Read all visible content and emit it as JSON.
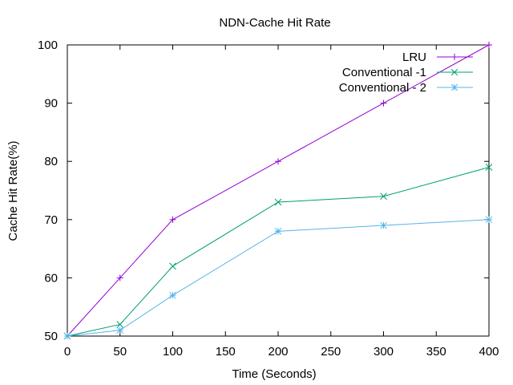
{
  "chart_data": {
    "type": "line",
    "title": "NDN-Cache Hit Rate",
    "xlabel": "Time (Seconds)",
    "ylabel": "Cache Hit Rate(%)",
    "xlim": [
      0,
      400
    ],
    "ylim": [
      50,
      100
    ],
    "xticks": [
      0,
      50,
      100,
      150,
      200,
      250,
      300,
      350,
      400
    ],
    "yticks": [
      50,
      60,
      70,
      80,
      90,
      100
    ],
    "grid": false,
    "legend_position": "top-right",
    "x": [
      0,
      50,
      100,
      200,
      300,
      400
    ],
    "series": [
      {
        "name": "LRU",
        "values": [
          50,
          60,
          70,
          80,
          90,
          100
        ],
        "color": "#9400d3",
        "marker": "plus"
      },
      {
        "name": "Conventional -1",
        "values": [
          50,
          52,
          62,
          73,
          74,
          79
        ],
        "color": "#009e73",
        "marker": "cross"
      },
      {
        "name": "Conventional - 2",
        "values": [
          50,
          51,
          57,
          68,
          69,
          70
        ],
        "color": "#56b4e9",
        "marker": "star"
      }
    ]
  }
}
